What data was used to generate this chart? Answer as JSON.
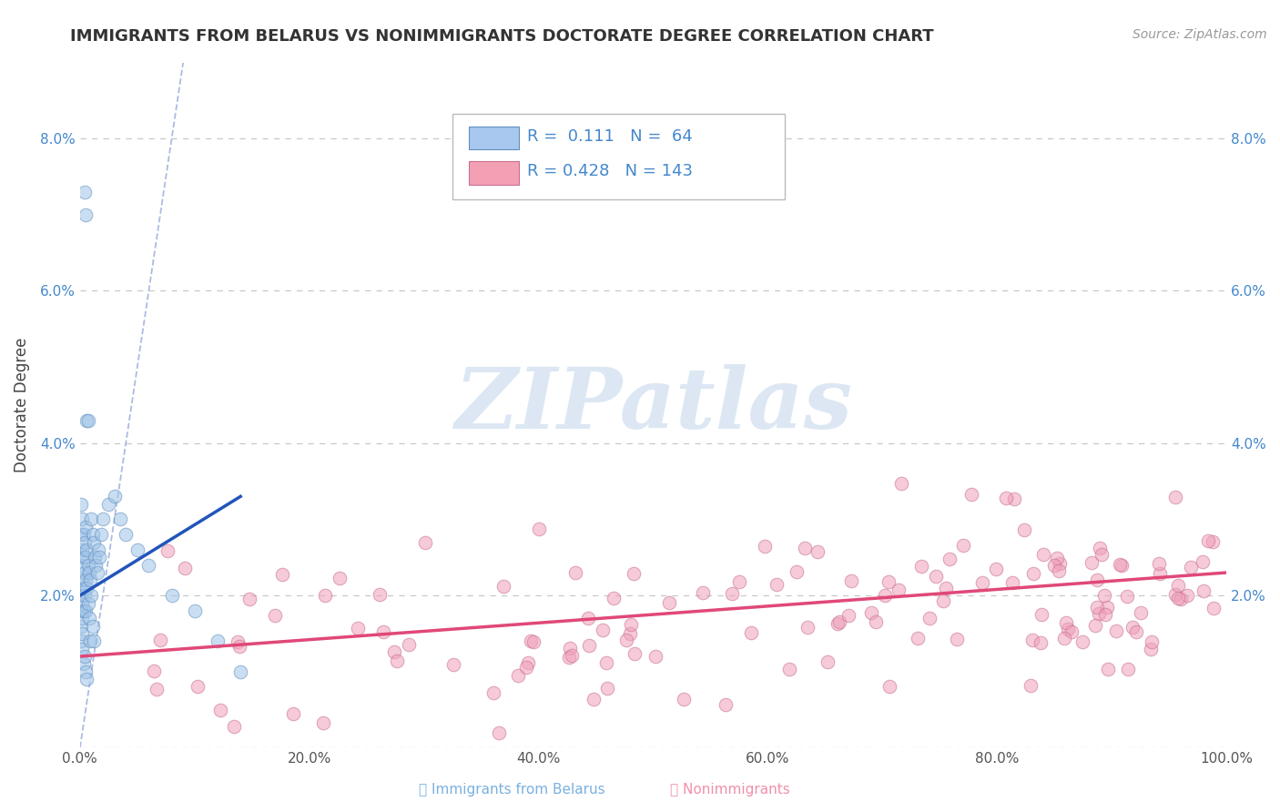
{
  "title": "IMMIGRANTS FROM BELARUS VS NONIMMIGRANTS DOCTORATE DEGREE CORRELATION CHART",
  "source": "Source: ZipAtlas.com",
  "ylabel": "Doctorate Degree",
  "xlim": [
    0,
    1.0
  ],
  "ylim": [
    0,
    0.09
  ],
  "xticks": [
    0.0,
    0.2,
    0.4,
    0.6,
    0.8,
    1.0
  ],
  "xtick_labels": [
    "0.0%",
    "20.0%",
    "40.0%",
    "60.0%",
    "80.0%",
    "100.0%"
  ],
  "yticks": [
    0.0,
    0.02,
    0.04,
    0.06,
    0.08
  ],
  "ytick_labels": [
    "",
    "2.0%",
    "4.0%",
    "6.0%",
    "8.0%"
  ],
  "background_color": "#ffffff",
  "grid_color": "#c8c8c8",
  "title_color": "#333333",
  "scatter_blue_color": "#a0c4e8",
  "scatter_blue_edge": "#6090c0",
  "scatter_pink_color": "#f0a0b8",
  "scatter_pink_edge": "#c87090",
  "trend_blue_color": "#2255bb",
  "trend_pink_color": "#e04878",
  "diag_color": "#99aadd",
  "watermark_color": "#c5d8ec",
  "watermark_text": "ZIPatlas",
  "legend_box_color": "#ffffff",
  "legend_border_color": "#bbbbbb",
  "legend_text_color": "#4488cc",
  "blue_R": "0.111",
  "blue_N": "64",
  "pink_R": "0.428",
  "pink_N": "143"
}
